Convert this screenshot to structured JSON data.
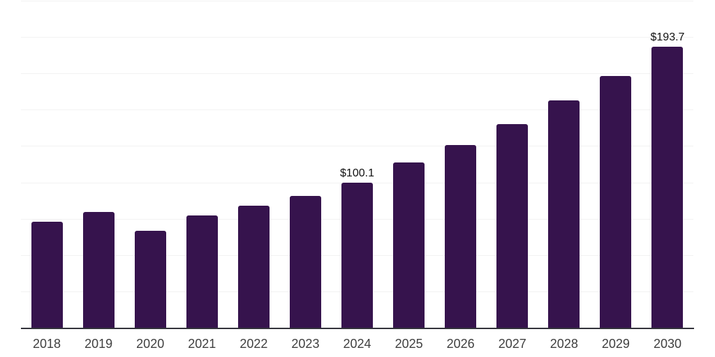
{
  "chart_data": {
    "type": "bar",
    "title": "",
    "xlabel": "",
    "ylabel": "",
    "categories": [
      "2018",
      "2019",
      "2020",
      "2021",
      "2022",
      "2023",
      "2024",
      "2025",
      "2026",
      "2027",
      "2028",
      "2029",
      "2030"
    ],
    "values": [
      73.2,
      80.1,
      67.3,
      77.6,
      84.3,
      91.1,
      100.1,
      114.0,
      126.3,
      140.4,
      156.7,
      173.5,
      193.7
    ],
    "annotations": [
      {
        "category": "2024",
        "text": "$100.1"
      },
      {
        "category": "2030",
        "text": "$193.7"
      }
    ],
    "ylim": [
      0,
      225
    ],
    "grid_step": 25,
    "grid": "horizontal-only",
    "legend": "none",
    "colors": {
      "bar": "#36134d",
      "gridline": "#f2f2f2",
      "axis_line": "#33333b",
      "tick_label": "#404040",
      "value_label": "#111111",
      "background": "#ffffff"
    }
  }
}
